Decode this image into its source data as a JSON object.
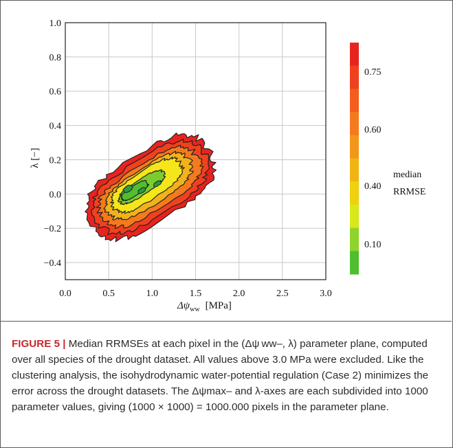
{
  "chart_data": {
    "type": "heatmap",
    "xlabel_main": "Δψ",
    "xlabel_sub": "ww",
    "xlabel_unit": "[MPa]",
    "ylabel": "λ [−]",
    "xlim": [
      0.0,
      3.0
    ],
    "ylim": [
      -0.5,
      1.0
    ],
    "xticks": [
      "0.0",
      "0.5",
      "1.0",
      "1.5",
      "2.0",
      "2.5",
      "3.0"
    ],
    "yticks": [
      "1.0",
      "0.8",
      "0.6",
      "0.4",
      "0.2",
      "0.0",
      "−0.2",
      "−0.4"
    ],
    "grid": true,
    "colorbar": {
      "label_line1": "median",
      "label_line2": "RRMSE",
      "tick_labels": [
        "0.75",
        "0.60",
        "0.40",
        "0.10"
      ],
      "bands": [
        "#e8231f",
        "#f0411e",
        "#f45d1e",
        "#f57a1c",
        "#f2971a",
        "#f0b512",
        "#efd10d",
        "#d8e81a",
        "#8fd42a",
        "#4fbf30"
      ]
    },
    "description_levels": {
      "outer_red": "#e8231f",
      "orange": "#f57a1c",
      "yellow": "#f5e61a",
      "light_green": "#7ccc2e",
      "dark_green": "#2f9a3a"
    }
  },
  "caption": {
    "label": "FIGURE 5",
    "separator": "|",
    "text": " Median RRMSEs at each pixel in the (Δψ ww–, λ) parameter plane, computed over all species of the drought dataset. All values above 3.0 MPa were excluded. Like the clustering analysis, the isohydrodynamic water-potential regulation (Case 2) minimizes the error across the drought datasets. The Δψmax– and λ-axes are each subdivided into 1000 parameter values, giving (1000 × 1000) = 1000.000 pixels in the parameter plane."
  }
}
